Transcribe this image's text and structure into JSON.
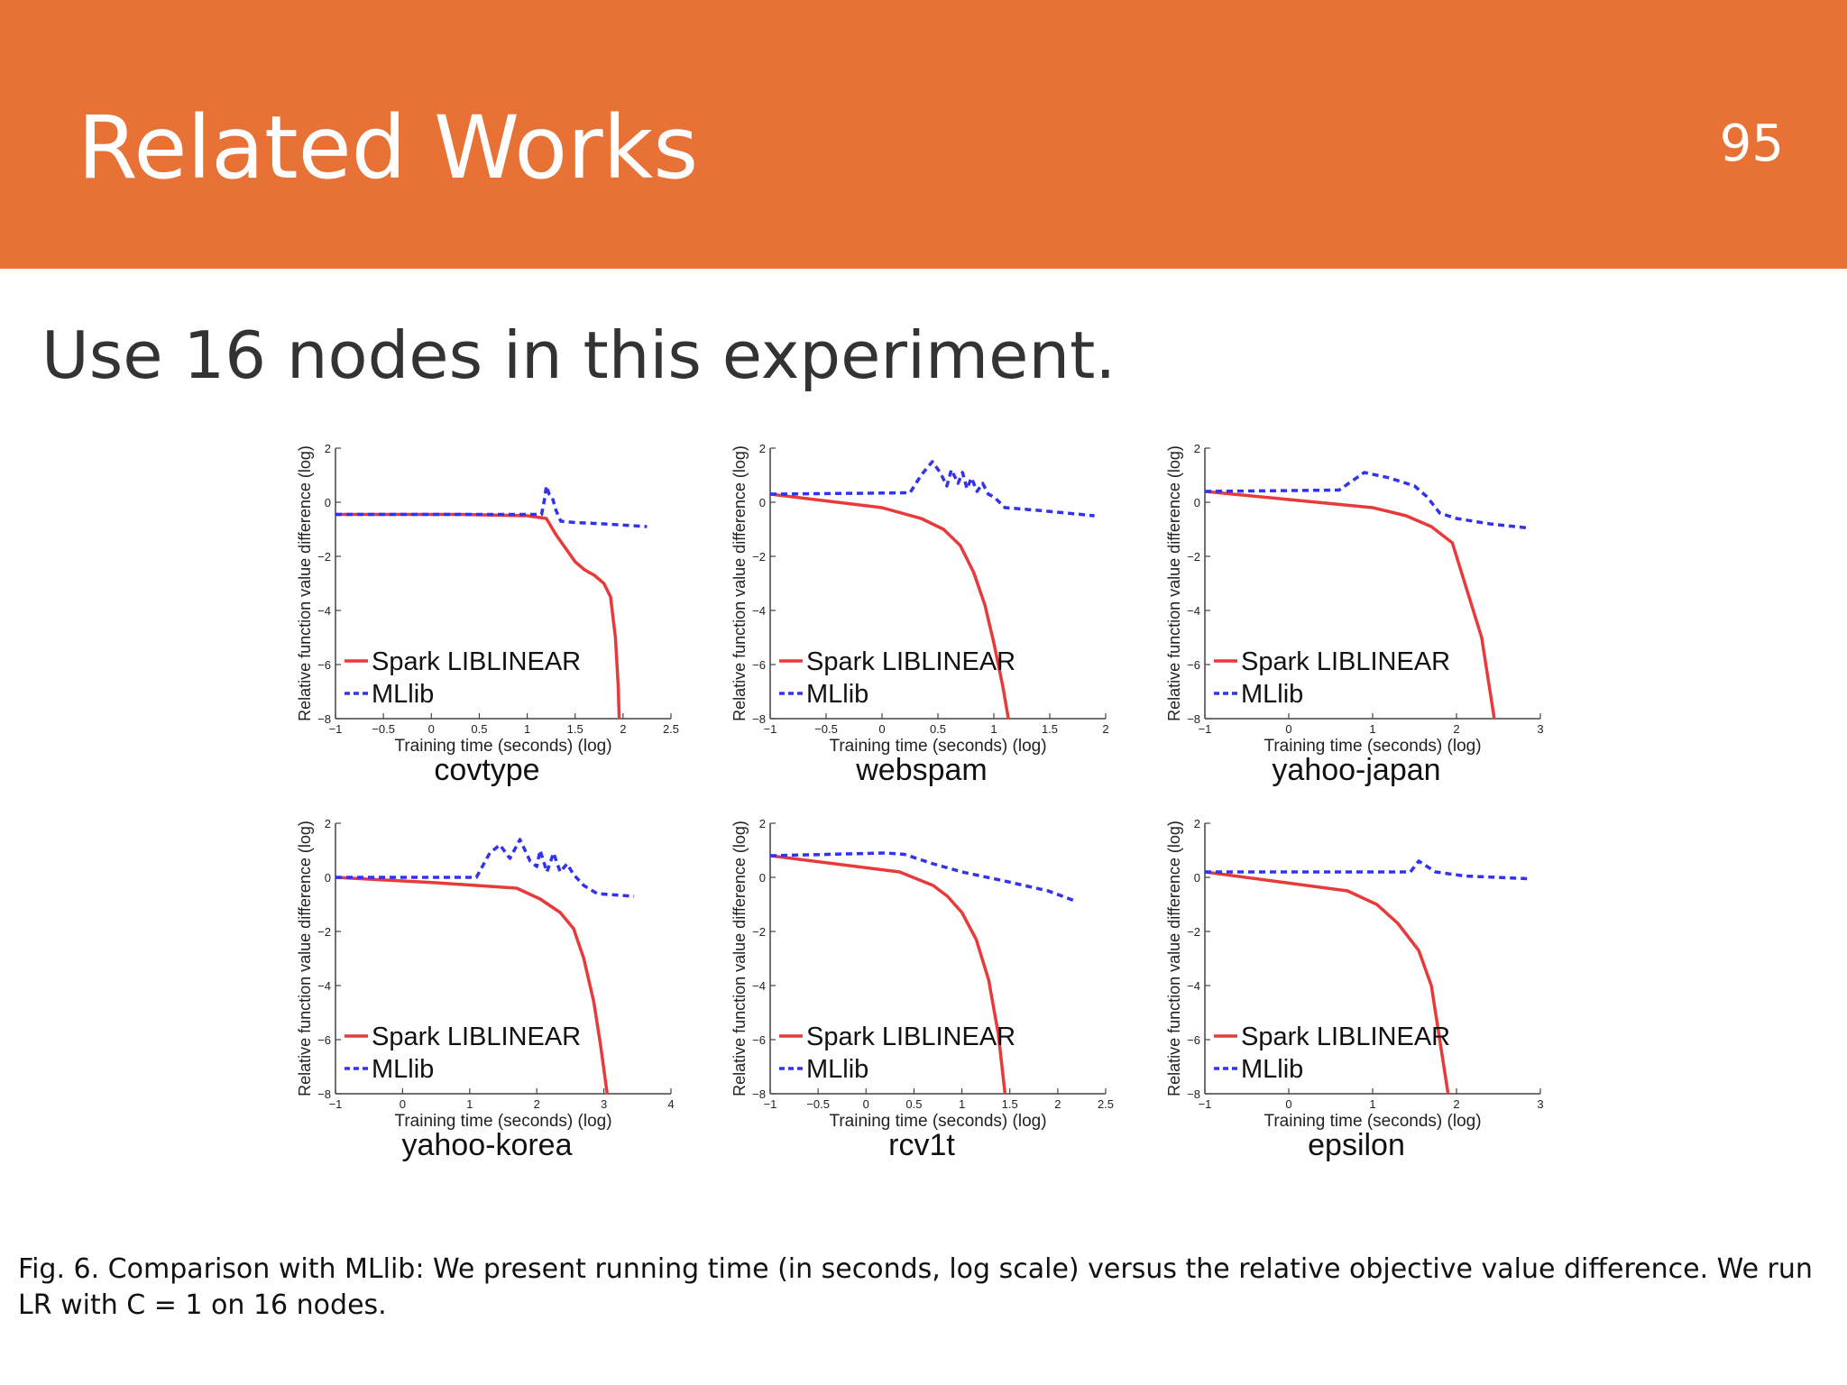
{
  "slide": {
    "title": "Related Works",
    "page_number": "95",
    "subtitle": "Use 16 nodes in this experiment.",
    "caption": "Fig. 6. Comparison with MLlib: We present running time (in seconds, log scale) versus the relative objective value difference. We run LR with C = 1 on 16 nodes.",
    "header_color": "#E87135"
  },
  "chart_data": [
    {
      "type": "line",
      "dataset": "covtype",
      "xlabel": "Training time (seconds) (log)",
      "ylabel": "Relative function value difference (log)",
      "xlim": [
        -1,
        2.5
      ],
      "ylim": [
        -8,
        2
      ],
      "xticks": [
        -1,
        -0.5,
        0,
        0.5,
        1,
        1.5,
        2,
        2.5
      ],
      "yticks": [
        -8,
        -6,
        -4,
        -2,
        0,
        2
      ],
      "legend": "bottom-left",
      "series": [
        {
          "name": "Spark LIBLINEAR",
          "color": "#E83A3A",
          "style": "solid",
          "x": [
            -1,
            0.3,
            1.0,
            1.2,
            1.3,
            1.4,
            1.5,
            1.6,
            1.7,
            1.8,
            1.87,
            1.92,
            1.95,
            1.96
          ],
          "y": [
            -0.45,
            -0.45,
            -0.5,
            -0.6,
            -1.2,
            -1.7,
            -2.2,
            -2.5,
            -2.7,
            -3.0,
            -3.5,
            -5.0,
            -6.8,
            -8.0
          ]
        },
        {
          "name": "MLlib",
          "color": "#3333EE",
          "style": "dashed",
          "x": [
            -1,
            0.5,
            1.15,
            1.18,
            1.2,
            1.23,
            1.26,
            1.3,
            1.35,
            1.5,
            1.8,
            2.25
          ],
          "y": [
            -0.45,
            -0.45,
            -0.45,
            0.1,
            0.6,
            0.3,
            0.2,
            -0.3,
            -0.7,
            -0.75,
            -0.8,
            -0.9
          ]
        }
      ]
    },
    {
      "type": "line",
      "dataset": "webspam",
      "xlabel": "Training time (seconds) (log)",
      "ylabel": "Relative function value difference (log)",
      "xlim": [
        -1,
        2
      ],
      "ylim": [
        -8,
        2
      ],
      "xticks": [
        -1,
        -0.5,
        0,
        0.5,
        1,
        1.5,
        2
      ],
      "yticks": [
        -8,
        -6,
        -4,
        -2,
        0,
        2
      ],
      "legend": "bottom-left",
      "series": [
        {
          "name": "Spark LIBLINEAR",
          "color": "#E83A3A",
          "style": "solid",
          "x": [
            -1,
            0,
            0.35,
            0.55,
            0.7,
            0.82,
            0.92,
            1.0,
            1.08,
            1.13
          ],
          "y": [
            0.3,
            -0.2,
            -0.6,
            -1.0,
            -1.6,
            -2.6,
            -3.8,
            -5.2,
            -6.8,
            -8.0
          ]
        },
        {
          "name": "MLlib",
          "color": "#3333EE",
          "style": "dashed",
          "x": [
            -1,
            0.25,
            0.35,
            0.45,
            0.52,
            0.58,
            0.62,
            0.68,
            0.72,
            0.76,
            0.8,
            0.85,
            0.9,
            0.95,
            1.0,
            1.1,
            1.4,
            1.9
          ],
          "y": [
            0.3,
            0.35,
            1.0,
            1.5,
            1.1,
            0.6,
            1.2,
            0.7,
            1.1,
            0.5,
            0.9,
            0.4,
            0.7,
            0.3,
            0.2,
            -0.2,
            -0.3,
            -0.5
          ]
        }
      ]
    },
    {
      "type": "line",
      "dataset": "yahoo-japan",
      "xlabel": "Training time (seconds) (log)",
      "ylabel": "Relative function value difference (log)",
      "xlim": [
        -1,
        3
      ],
      "ylim": [
        -8,
        2
      ],
      "xticks": [
        -1,
        0,
        1,
        2,
        3
      ],
      "yticks": [
        -8,
        -6,
        -4,
        -2,
        0,
        2
      ],
      "legend": "bottom-left",
      "series": [
        {
          "name": "Spark LIBLINEAR",
          "color": "#E83A3A",
          "style": "solid",
          "x": [
            -1,
            0,
            1.0,
            1.4,
            1.7,
            1.95,
            2.1,
            2.3,
            2.45
          ],
          "y": [
            0.4,
            0.1,
            -0.2,
            -0.5,
            -0.9,
            -1.5,
            -3.0,
            -5.0,
            -8.0
          ]
        },
        {
          "name": "MLlib",
          "color": "#3333EE",
          "style": "dashed",
          "x": [
            -1,
            0.6,
            0.9,
            1.2,
            1.5,
            1.65,
            1.8,
            2.0,
            2.4,
            2.85
          ],
          "y": [
            0.4,
            0.45,
            1.1,
            0.9,
            0.6,
            0.2,
            -0.4,
            -0.6,
            -0.8,
            -0.95
          ]
        }
      ]
    },
    {
      "type": "line",
      "dataset": "yahoo-korea",
      "xlabel": "Training time (seconds) (log)",
      "ylabel": "Relative function value difference (log)",
      "xlim": [
        -1,
        4
      ],
      "ylim": [
        -8,
        2
      ],
      "xticks": [
        -1,
        0,
        1,
        2,
        3,
        4
      ],
      "yticks": [
        -8,
        -6,
        -4,
        -2,
        0,
        2
      ],
      "legend": "bottom-left",
      "series": [
        {
          "name": "Spark LIBLINEAR",
          "color": "#E83A3A",
          "style": "solid",
          "x": [
            -1,
            0.5,
            1.7,
            2.05,
            2.35,
            2.55,
            2.7,
            2.85,
            2.95,
            3.05
          ],
          "y": [
            0.0,
            -0.2,
            -0.4,
            -0.8,
            -1.3,
            -1.9,
            -3.0,
            -4.6,
            -6.2,
            -8.0
          ]
        },
        {
          "name": "MLlib",
          "color": "#3333EE",
          "style": "dashed",
          "x": [
            -1,
            1.1,
            1.3,
            1.45,
            1.6,
            1.75,
            1.9,
            2.0,
            2.05,
            2.15,
            2.25,
            2.35,
            2.45,
            2.55,
            2.7,
            2.9,
            3.45
          ],
          "y": [
            0.0,
            0.0,
            0.9,
            1.2,
            0.7,
            1.4,
            0.6,
            0.4,
            1.0,
            0.2,
            0.9,
            0.2,
            0.5,
            0.1,
            -0.3,
            -0.6,
            -0.7
          ]
        }
      ]
    },
    {
      "type": "line",
      "dataset": "rcv1t",
      "xlabel": "Training time (seconds) (log)",
      "ylabel": "Relative function value difference (log)",
      "xlim": [
        -1,
        2.5
      ],
      "ylim": [
        -8,
        2
      ],
      "xticks": [
        -1,
        -0.5,
        0,
        0.5,
        1,
        1.5,
        2,
        2.5
      ],
      "yticks": [
        -8,
        -6,
        -4,
        -2,
        0,
        2
      ],
      "legend": "bottom-left",
      "series": [
        {
          "name": "Spark LIBLINEAR",
          "color": "#E83A3A",
          "style": "solid",
          "x": [
            -1,
            0.35,
            0.7,
            0.85,
            1.0,
            1.15,
            1.28,
            1.38,
            1.45
          ],
          "y": [
            0.8,
            0.2,
            -0.3,
            -0.7,
            -1.3,
            -2.3,
            -3.8,
            -5.8,
            -8.0
          ]
        },
        {
          "name": "MLlib",
          "color": "#3333EE",
          "style": "dashed",
          "x": [
            -1,
            0.2,
            0.4,
            0.7,
            1.0,
            1.4,
            1.9,
            2.2
          ],
          "y": [
            0.8,
            0.9,
            0.85,
            0.5,
            0.2,
            -0.1,
            -0.5,
            -0.9
          ]
        }
      ]
    },
    {
      "type": "line",
      "dataset": "epsilon",
      "xlabel": "Training time (seconds) (log)",
      "ylabel": "Relative function value difference (log)",
      "xlim": [
        -1,
        3
      ],
      "ylim": [
        -8,
        2
      ],
      "xticks": [
        -1,
        0,
        1,
        2,
        3
      ],
      "yticks": [
        -8,
        -6,
        -4,
        -2,
        0,
        2
      ],
      "legend": "bottom-left",
      "series": [
        {
          "name": "Spark LIBLINEAR",
          "color": "#E83A3A",
          "style": "solid",
          "x": [
            -1,
            0.7,
            1.05,
            1.3,
            1.55,
            1.7,
            1.8,
            1.9
          ],
          "y": [
            0.2,
            -0.5,
            -1.0,
            -1.7,
            -2.7,
            -4.0,
            -6.0,
            -8.0
          ]
        },
        {
          "name": "MLlib",
          "color": "#3333EE",
          "style": "dashed",
          "x": [
            -1,
            1.2,
            1.45,
            1.55,
            1.75,
            2.1,
            2.85
          ],
          "y": [
            0.2,
            0.2,
            0.2,
            0.6,
            0.2,
            0.05,
            -0.05
          ]
        }
      ]
    }
  ]
}
